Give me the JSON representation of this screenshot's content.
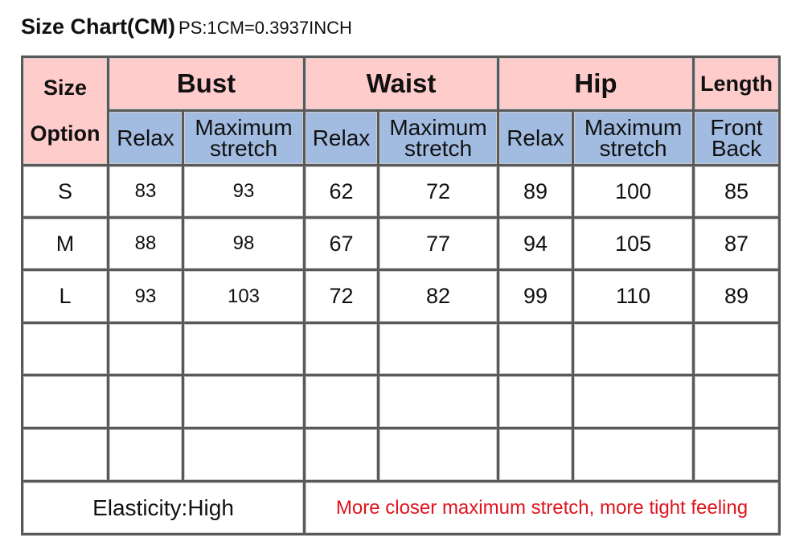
{
  "title": {
    "main": "Size Chart",
    "unit": "(CM)",
    "note": "PS:1CM=0.3937INCH"
  },
  "header": {
    "size_line1": "Size",
    "size_line2": "Option",
    "groups": [
      "Bust",
      "Waist",
      "Hip",
      "Length"
    ],
    "sub": {
      "relax": "Relax",
      "max1": "Maximum",
      "max2": "stretch",
      "front": "Front",
      "back": "Back"
    }
  },
  "rows": [
    {
      "size": "S",
      "bust_relax": "83",
      "bust_max": "93",
      "waist_relax": "62",
      "waist_max": "72",
      "hip_relax": "89",
      "hip_max": "100",
      "length": "85"
    },
    {
      "size": "M",
      "bust_relax": "88",
      "bust_max": "98",
      "waist_relax": "67",
      "waist_max": "77",
      "hip_relax": "94",
      "hip_max": "105",
      "length": "87"
    },
    {
      "size": "L",
      "bust_relax": "93",
      "bust_max": "103",
      "waist_relax": "72",
      "waist_max": "82",
      "hip_relax": "99",
      "hip_max": "110",
      "length": "89"
    }
  ],
  "footer": {
    "elasticity": "Elasticity:High",
    "note": "More closer maximum stretch, more tight feeling"
  },
  "colors": {
    "header_pink": "#ffcccc",
    "header_blue": "#a2bbe0",
    "note_red": "#e0141e"
  }
}
